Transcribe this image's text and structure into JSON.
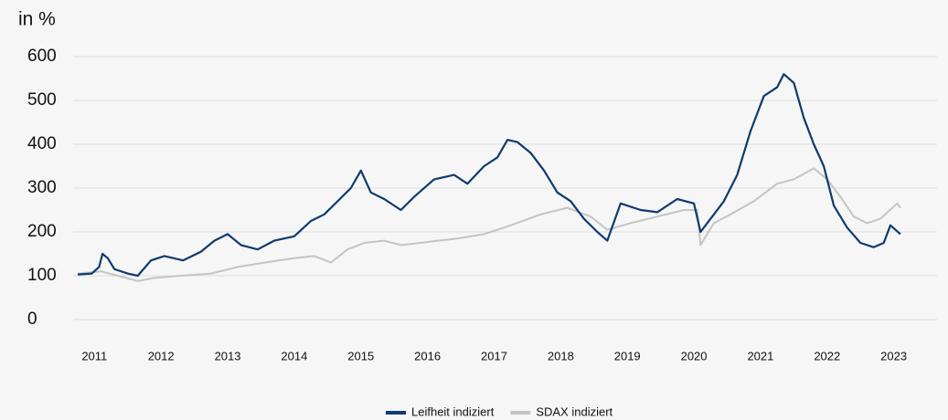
{
  "chart_data": {
    "type": "line",
    "y_axis_label": "in %",
    "xlim": [
      2010.68,
      2023.65
    ],
    "xticks": [
      2011,
      2012,
      2013,
      2014,
      2015,
      2016,
      2017,
      2018,
      2019,
      2020,
      2021,
      2022,
      2023
    ],
    "ylim": [
      0,
      600
    ],
    "yticks": [
      0,
      100,
      200,
      300,
      400,
      500,
      600
    ],
    "grid": true,
    "legend": "bottom",
    "series": [
      {
        "name": "Leifheit indiziert",
        "color": "#0f3a6e",
        "x": [
          2010.75,
          2010.96,
          2011.07,
          2011.12,
          2011.2,
          2011.3,
          2011.5,
          2011.65,
          2011.85,
          2012.05,
          2012.33,
          2012.6,
          2012.8,
          2013.0,
          2013.2,
          2013.45,
          2013.7,
          2014.0,
          2014.25,
          2014.45,
          2014.65,
          2014.85,
          2015.0,
          2015.15,
          2015.35,
          2015.6,
          2015.8,
          2016.1,
          2016.4,
          2016.6,
          2016.85,
          2017.05,
          2017.2,
          2017.35,
          2017.55,
          2017.75,
          2017.95,
          2018.15,
          2018.35,
          2018.55,
          2018.7,
          2018.9,
          2019.2,
          2019.45,
          2019.75,
          2020.0,
          2020.1,
          2020.2,
          2020.45,
          2020.65,
          2020.85,
          2021.05,
          2021.25,
          2021.35,
          2021.5,
          2021.65,
          2021.8,
          2021.95,
          2022.1,
          2022.3,
          2022.5,
          2022.7,
          2022.85,
          2022.95,
          2023.1
        ],
        "values": [
          103,
          105,
          120,
          150,
          140,
          115,
          105,
          100,
          135,
          145,
          135,
          155,
          180,
          195,
          170,
          160,
          180,
          190,
          225,
          240,
          270,
          300,
          340,
          290,
          275,
          250,
          280,
          320,
          330,
          310,
          350,
          370,
          410,
          405,
          380,
          340,
          290,
          270,
          230,
          200,
          180,
          265,
          250,
          245,
          275,
          265,
          200,
          220,
          270,
          330,
          430,
          510,
          530,
          560,
          540,
          460,
          400,
          350,
          260,
          210,
          175,
          165,
          175,
          215,
          195
        ]
      },
      {
        "name": "SDAX indiziert",
        "color": "#c4c4c4",
        "x": [
          2010.75,
          2011.1,
          2011.35,
          2011.65,
          2011.9,
          2012.3,
          2012.75,
          2013.15,
          2013.55,
          2014.0,
          2014.3,
          2014.55,
          2014.8,
          2015.05,
          2015.35,
          2015.6,
          2015.9,
          2016.15,
          2016.45,
          2016.85,
          2017.25,
          2017.7,
          2018.1,
          2018.45,
          2018.7,
          2019.05,
          2019.45,
          2019.85,
          2020.05,
          2020.1,
          2020.3,
          2020.55,
          2020.9,
          2021.25,
          2021.5,
          2021.8,
          2022.0,
          2022.2,
          2022.4,
          2022.6,
          2022.8,
          2023.05,
          2023.1
        ],
        "values": [
          105,
          110,
          100,
          88,
          95,
          100,
          105,
          120,
          130,
          140,
          145,
          130,
          160,
          175,
          180,
          170,
          175,
          180,
          185,
          195,
          215,
          240,
          255,
          235,
          205,
          220,
          235,
          250,
          250,
          170,
          220,
          240,
          270,
          310,
          320,
          345,
          320,
          280,
          235,
          220,
          230,
          265,
          255
        ]
      }
    ]
  }
}
